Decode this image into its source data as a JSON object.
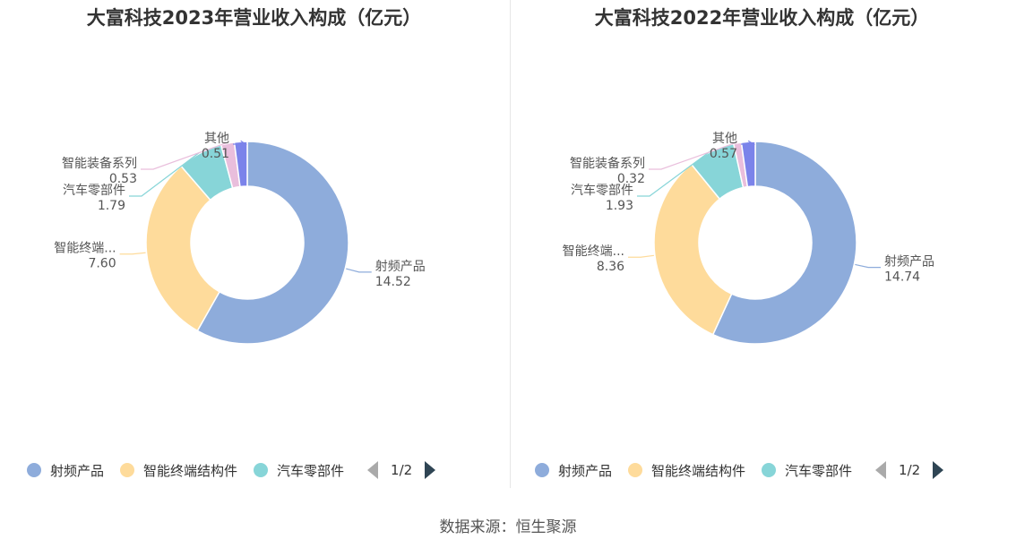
{
  "source": "数据来源：恒生聚源",
  "chart_data": [
    {
      "type": "pie",
      "title": "大富科技2023年营业收入构成（亿元）",
      "series": [
        {
          "name": "射频产品",
          "value": 14.52,
          "label_name": "射频产品",
          "label_value": "14.52",
          "color": "#8eacdb"
        },
        {
          "name": "智能终端结构件",
          "value": 7.6,
          "label_name": "智能终端...",
          "label_value": "7.60",
          "color": "#fedb9b"
        },
        {
          "name": "汽车零部件",
          "value": 1.79,
          "label_name": "汽车零部件",
          "label_value": "1.79",
          "color": "#87d5d8"
        },
        {
          "name": "智能装备系列",
          "value": 0.53,
          "label_name": "智能装备系列",
          "label_value": "0.53",
          "color": "#e9bedc"
        },
        {
          "name": "其他",
          "value": 0.51,
          "label_name": "其他",
          "label_value": "0.51",
          "color": "#7b83ea"
        }
      ],
      "legend": {
        "items": [
          "射频产品",
          "智能终端结构件",
          "汽车零部件"
        ],
        "page": "1/2",
        "placement": "bottom"
      }
    },
    {
      "type": "pie",
      "title": "大富科技2022年营业收入构成（亿元）",
      "series": [
        {
          "name": "射频产品",
          "value": 14.74,
          "label_name": "射频产品",
          "label_value": "14.74",
          "color": "#8eacdb"
        },
        {
          "name": "智能终端结构件",
          "value": 8.36,
          "label_name": "智能终端...",
          "label_value": "8.36",
          "color": "#fedb9b"
        },
        {
          "name": "汽车零部件",
          "value": 1.93,
          "label_name": "汽车零部件",
          "label_value": "1.93",
          "color": "#87d5d8"
        },
        {
          "name": "智能装备系列",
          "value": 0.32,
          "label_name": "智能装备系列",
          "label_value": "0.32",
          "color": "#e9bedc"
        },
        {
          "name": "其他",
          "value": 0.57,
          "label_name": "其他",
          "label_value": "0.57",
          "color": "#7b83ea"
        }
      ],
      "legend": {
        "items": [
          "射频产品",
          "智能终端结构件",
          "汽车零部件"
        ],
        "page": "1/2",
        "placement": "bottom"
      }
    }
  ]
}
